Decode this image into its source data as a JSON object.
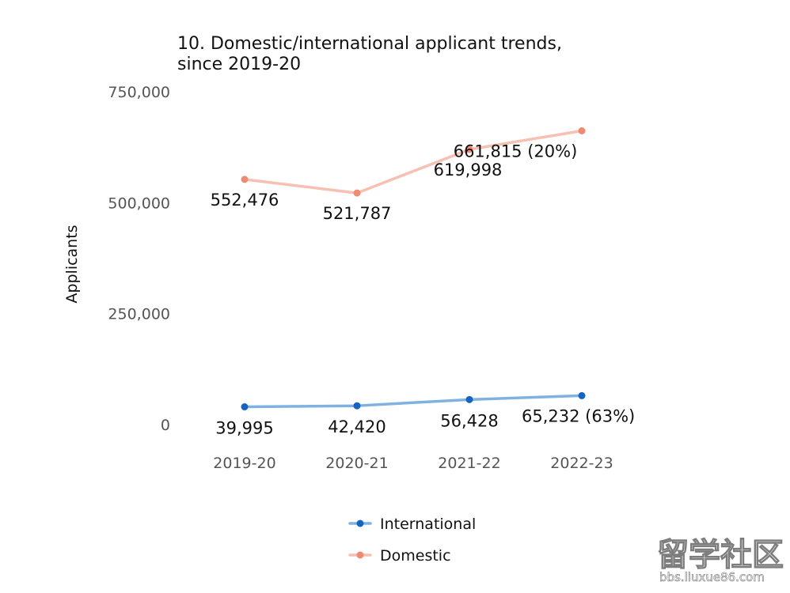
{
  "chart_data": {
    "type": "line",
    "title_lines": [
      "10. Domestic/international applicant trends,",
      "since 2019-20"
    ],
    "ylabel": "Applicants",
    "xlabel": "",
    "categories": [
      "2019-20",
      "2020-21",
      "2021-22",
      "2022-23"
    ],
    "ylim": [
      0,
      750000
    ],
    "yticks": [
      {
        "value": 0,
        "label": "0"
      },
      {
        "value": 250000,
        "label": "250,000"
      },
      {
        "value": 500000,
        "label": "500,000"
      },
      {
        "value": 750000,
        "label": "750,000"
      }
    ],
    "grid": false,
    "legend_position": "bottom",
    "series": [
      {
        "name": "International",
        "values": [
          39995,
          42420,
          56428,
          65232
        ],
        "labels": [
          "39,995",
          "42,420",
          "56,428",
          "65,232 (63%)"
        ],
        "line_color": "#7fb2e0",
        "marker_color": "#1565c0"
      },
      {
        "name": "Domestic",
        "values": [
          552476,
          521787,
          619998,
          661815
        ],
        "labels": [
          "552,476",
          "521,787",
          "619,998",
          "661,815 (20%)"
        ],
        "line_color": "#f8c0b2",
        "marker_color": "#f08a72"
      }
    ]
  },
  "watermark": {
    "main": "留学社区",
    "sub": "bbs.liuxue86.com"
  }
}
